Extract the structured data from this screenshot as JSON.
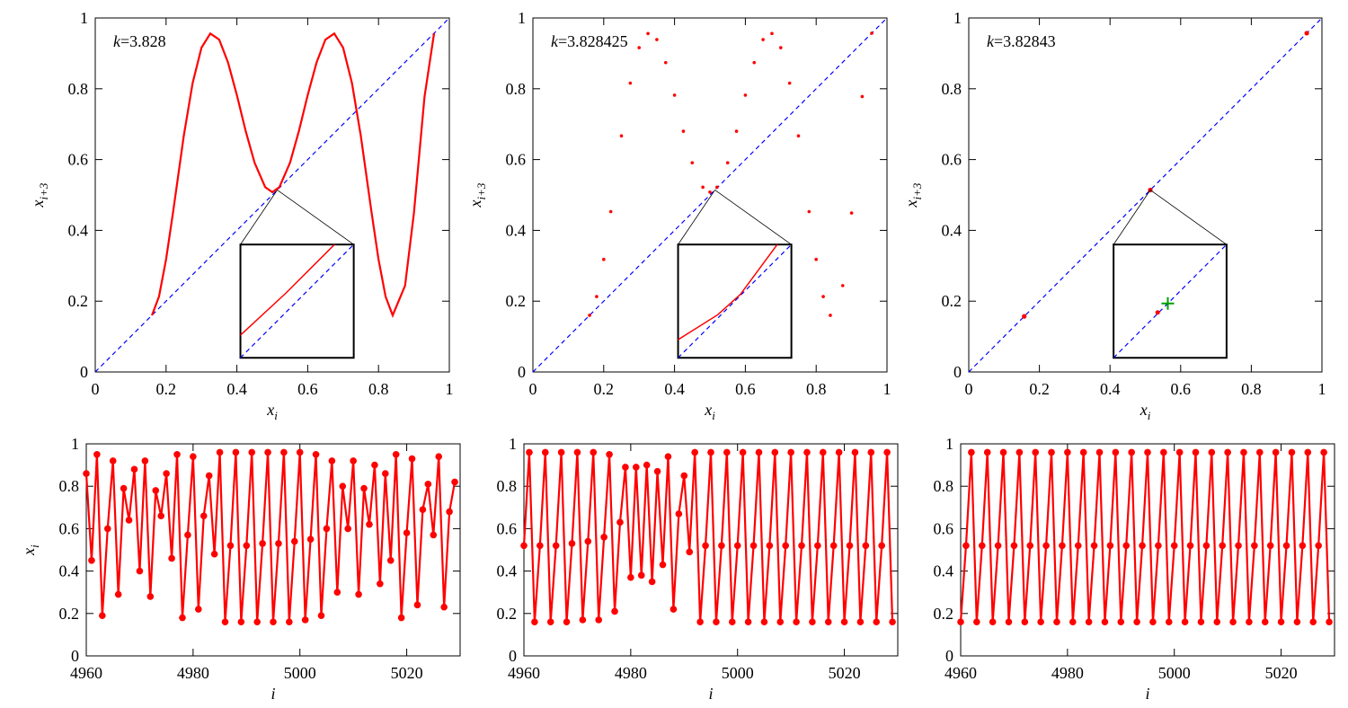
{
  "chart_data": [
    {
      "type": "line",
      "annotation": {
        "symbol": "k",
        "text": "=3.828"
      },
      "xlabel": {
        "base": "x",
        "sub": "i"
      },
      "ylabel": {
        "base": "x",
        "sub": "i+3"
      },
      "xlim": [
        0,
        1
      ],
      "ylim": [
        0,
        1
      ],
      "xticks": [
        0,
        0.2,
        0.4,
        0.6,
        0.8,
        1
      ],
      "yticks": [
        0,
        0.2,
        0.4,
        0.6,
        0.8,
        1
      ],
      "series": [
        {
          "color": "#0000ff",
          "dash": true,
          "x": [
            0,
            1
          ],
          "values": [
            0,
            1
          ]
        },
        {
          "color": "#ff0000",
          "x": [
            0.16,
            0.18,
            0.2,
            0.22,
            0.25,
            0.275,
            0.3,
            0.325,
            0.35,
            0.375,
            0.4,
            0.425,
            0.45,
            0.48,
            0.5,
            0.52,
            0.55,
            0.575,
            0.6,
            0.625,
            0.65,
            0.675,
            0.7,
            0.725,
            0.75,
            0.78,
            0.8,
            0.82,
            0.84,
            0.875,
            0.9,
            0.93,
            0.957
          ],
          "values": [
            0.16,
            0.213,
            0.318,
            0.453,
            0.667,
            0.816,
            0.916,
            0.956,
            0.939,
            0.874,
            0.782,
            0.68,
            0.591,
            0.522,
            0.508,
            0.522,
            0.591,
            0.68,
            0.782,
            0.874,
            0.939,
            0.956,
            0.916,
            0.816,
            0.667,
            0.453,
            0.318,
            0.213,
            0.16,
            0.244,
            0.449,
            0.778,
            0.957
          ]
        }
      ],
      "inset": {
        "type": "line",
        "xlim": [
          0.51,
          0.518
        ],
        "ylim": [
          0.51,
          0.518
        ],
        "series": [
          {
            "color": "#0000ff",
            "dash": true,
            "x": [
              0.51,
              0.518
            ],
            "values": [
              0.51,
              0.518
            ]
          },
          {
            "color": "#ff0000",
            "x": [
              0.51,
              0.5132,
              0.51664
            ],
            "values": [
              0.5116,
              0.51456,
              0.518
            ]
          }
        ]
      }
    },
    {
      "type": "scatter",
      "annotation": {
        "symbol": "k",
        "text": "=3.828425"
      },
      "xlabel": {
        "base": "x",
        "sub": "i"
      },
      "ylabel": {
        "base": "x",
        "sub": "i+3"
      },
      "xlim": [
        0,
        1
      ],
      "ylim": [
        0,
        1
      ],
      "xticks": [
        0,
        0.2,
        0.4,
        0.6,
        0.8,
        1
      ],
      "yticks": [
        0,
        0.2,
        0.4,
        0.6,
        0.8,
        1
      ],
      "series": [
        {
          "color": "#0000ff",
          "dash": true,
          "x": [
            0,
            1
          ],
          "values": [
            0,
            1
          ]
        },
        {
          "color": "#ff0000",
          "x": [
            0.16,
            0.18,
            0.2,
            0.22,
            0.25,
            0.275,
            0.3,
            0.325,
            0.35,
            0.375,
            0.4,
            0.425,
            0.45,
            0.48,
            0.5,
            0.52,
            0.55,
            0.575,
            0.6,
            0.625,
            0.65,
            0.675,
            0.7,
            0.725,
            0.75,
            0.78,
            0.8,
            0.82,
            0.84,
            0.875,
            0.9,
            0.93,
            0.957
          ],
          "values": [
            0.16,
            0.213,
            0.318,
            0.453,
            0.667,
            0.816,
            0.916,
            0.956,
            0.939,
            0.874,
            0.782,
            0.68,
            0.591,
            0.522,
            0.508,
            0.522,
            0.591,
            0.68,
            0.782,
            0.874,
            0.939,
            0.956,
            0.916,
            0.816,
            0.667,
            0.453,
            0.318,
            0.213,
            0.16,
            0.244,
            0.449,
            0.778,
            0.957
          ]
        }
      ],
      "inset": {
        "type": "line",
        "xlim": [
          0.51,
          0.518
        ],
        "ylim": [
          0.51,
          0.518
        ],
        "series": [
          {
            "color": "#0000ff",
            "dash": true,
            "x": [
              0.51,
              0.518
            ],
            "values": [
              0.51,
              0.518
            ]
          },
          {
            "color": "#ff0000",
            "x": [
              0.51,
              0.5128,
              0.5144,
              0.517
            ],
            "values": [
              0.51128,
              0.51304,
              0.51448,
              0.518
            ]
          }
        ]
      }
    },
    {
      "type": "scatter",
      "annotation": {
        "symbol": "k",
        "text": "=3.82843"
      },
      "xlabel": {
        "base": "x",
        "sub": "i"
      },
      "ylabel": {
        "base": "x",
        "sub": "i+3"
      },
      "xlim": [
        0,
        1
      ],
      "ylim": [
        0,
        1
      ],
      "xticks": [
        0,
        0.2,
        0.4,
        0.6,
        0.8,
        1
      ],
      "yticks": [
        0,
        0.2,
        0.4,
        0.6,
        0.8,
        1
      ],
      "series": [
        {
          "color": "#0000ff",
          "dash": true,
          "x": [
            0,
            1
          ],
          "values": [
            0,
            1
          ]
        },
        {
          "color": "#ff0000",
          "x": [
            0.157,
            0.514,
            0.957
          ],
          "values": [
            0.157,
            0.514,
            0.957
          ]
        }
      ],
      "inset": {
        "type": "scatter",
        "xlim": [
          0.51,
          0.518
        ],
        "ylim": [
          0.51,
          0.518
        ],
        "series": [
          {
            "color": "#0000ff",
            "dash": true,
            "x": [
              0.51,
              0.518
            ],
            "values": [
              0.51,
              0.518
            ]
          },
          {
            "color": "#ff0000",
            "x": [
              0.51312
            ],
            "values": [
              0.5132
            ]
          },
          {
            "color": "#00a000",
            "marker": "plus",
            "x": [
              0.51384
            ],
            "values": [
              0.51384
            ]
          }
        ]
      }
    },
    {
      "type": "line",
      "markers": true,
      "xlabel": {
        "base": "i"
      },
      "ylabel": {
        "base": "x",
        "sub": "i"
      },
      "xlim": [
        4960,
        5030
      ],
      "ylim": [
        0,
        1
      ],
      "xticks": [
        4960,
        4980,
        5000,
        5020
      ],
      "yticks": [
        0,
        0.2,
        0.4,
        0.6,
        0.8,
        1
      ],
      "series": [
        {
          "color": "#ff0000",
          "x": [
            4960,
            4961,
            4962,
            4963,
            4964,
            4965,
            4966,
            4967,
            4968,
            4969,
            4970,
            4971,
            4972,
            4973,
            4974,
            4975,
            4976,
            4977,
            4978,
            4979,
            4980,
            4981,
            4982,
            4983,
            4984,
            4985,
            4986,
            4987,
            4988,
            4989,
            4990,
            4991,
            4992,
            4993,
            4994,
            4995,
            4996,
            4997,
            4998,
            4999,
            5000,
            5001,
            5002,
            5003,
            5004,
            5005,
            5006,
            5007,
            5008,
            5009,
            5010,
            5011,
            5012,
            5013,
            5014,
            5015,
            5016,
            5017,
            5018,
            5019,
            5020,
            5021,
            5022,
            5023,
            5024,
            5025,
            5026,
            5027,
            5028,
            5029
          ],
          "values": [
            0.86,
            0.45,
            0.95,
            0.19,
            0.6,
            0.92,
            0.29,
            0.79,
            0.64,
            0.88,
            0.4,
            0.92,
            0.28,
            0.78,
            0.66,
            0.86,
            0.46,
            0.95,
            0.18,
            0.57,
            0.94,
            0.22,
            0.66,
            0.85,
            0.48,
            0.96,
            0.16,
            0.52,
            0.96,
            0.16,
            0.52,
            0.96,
            0.16,
            0.53,
            0.96,
            0.16,
            0.53,
            0.96,
            0.16,
            0.54,
            0.96,
            0.17,
            0.55,
            0.95,
            0.19,
            0.6,
            0.92,
            0.3,
            0.8,
            0.6,
            0.92,
            0.29,
            0.79,
            0.62,
            0.9,
            0.34,
            0.86,
            0.45,
            0.95,
            0.18,
            0.58,
            0.93,
            0.24,
            0.69,
            0.81,
            0.57,
            0.94,
            0.23,
            0.68,
            0.82
          ]
        }
      ]
    },
    {
      "type": "line",
      "markers": true,
      "xlabel": {
        "base": "i"
      },
      "xlim": [
        4960,
        5030
      ],
      "ylim": [
        0,
        1
      ],
      "xticks": [
        4960,
        4980,
        5000,
        5020
      ],
      "yticks": [
        0,
        0.2,
        0.4,
        0.6,
        0.8,
        1
      ],
      "series": [
        {
          "color": "#ff0000",
          "x": [
            4960,
            4961,
            4962,
            4963,
            4964,
            4965,
            4966,
            4967,
            4968,
            4969,
            4970,
            4971,
            4972,
            4973,
            4974,
            4975,
            4976,
            4977,
            4978,
            4979,
            4980,
            4981,
            4982,
            4983,
            4984,
            4985,
            4986,
            4987,
            4988,
            4989,
            4990,
            4991,
            4992,
            4993,
            4994,
            4995,
            4996,
            4997,
            4998,
            4999,
            5000,
            5001,
            5002,
            5003,
            5004,
            5005,
            5006,
            5007,
            5008,
            5009,
            5010,
            5011,
            5012,
            5013,
            5014,
            5015,
            5016,
            5017,
            5018,
            5019,
            5020,
            5021,
            5022,
            5023,
            5024,
            5025,
            5026,
            5027,
            5028,
            5029
          ],
          "values": [
            0.52,
            0.96,
            0.16,
            0.52,
            0.96,
            0.16,
            0.52,
            0.96,
            0.16,
            0.53,
            0.96,
            0.17,
            0.54,
            0.96,
            0.17,
            0.56,
            0.95,
            0.21,
            0.63,
            0.89,
            0.37,
            0.89,
            0.38,
            0.9,
            0.35,
            0.87,
            0.43,
            0.94,
            0.22,
            0.67,
            0.85,
            0.49,
            0.96,
            0.16,
            0.52,
            0.96,
            0.16,
            0.52,
            0.96,
            0.16,
            0.52,
            0.96,
            0.16,
            0.52,
            0.96,
            0.16,
            0.52,
            0.96,
            0.16,
            0.52,
            0.96,
            0.16,
            0.52,
            0.96,
            0.16,
            0.52,
            0.96,
            0.16,
            0.52,
            0.96,
            0.16,
            0.52,
            0.96,
            0.16,
            0.52,
            0.96,
            0.16,
            0.52,
            0.96,
            0.16
          ]
        }
      ]
    },
    {
      "type": "line",
      "markers": true,
      "xlabel": {
        "base": "i"
      },
      "xlim": [
        4960,
        5030
      ],
      "ylim": [
        0,
        1
      ],
      "xticks": [
        4960,
        4980,
        5000,
        5020
      ],
      "yticks": [
        0,
        0.2,
        0.4,
        0.6,
        0.8,
        1
      ],
      "series": [
        {
          "color": "#ff0000",
          "x": [
            4960,
            4961,
            4962,
            4963,
            4964,
            4965,
            4966,
            4967,
            4968,
            4969,
            4970,
            4971,
            4972,
            4973,
            4974,
            4975,
            4976,
            4977,
            4978,
            4979,
            4980,
            4981,
            4982,
            4983,
            4984,
            4985,
            4986,
            4987,
            4988,
            4989,
            4990,
            4991,
            4992,
            4993,
            4994,
            4995,
            4996,
            4997,
            4998,
            4999,
            5000,
            5001,
            5002,
            5003,
            5004,
            5005,
            5006,
            5007,
            5008,
            5009,
            5010,
            5011,
            5012,
            5013,
            5014,
            5015,
            5016,
            5017,
            5018,
            5019,
            5020,
            5021,
            5022,
            5023,
            5024,
            5025,
            5026,
            5027,
            5028,
            5029
          ],
          "values": [
            0.16,
            0.52,
            0.96,
            0.16,
            0.52,
            0.96,
            0.16,
            0.52,
            0.96,
            0.16,
            0.52,
            0.96,
            0.16,
            0.52,
            0.96,
            0.16,
            0.52,
            0.96,
            0.16,
            0.52,
            0.96,
            0.16,
            0.52,
            0.96,
            0.16,
            0.52,
            0.96,
            0.16,
            0.52,
            0.96,
            0.16,
            0.52,
            0.96,
            0.16,
            0.52,
            0.96,
            0.16,
            0.52,
            0.96,
            0.16,
            0.52,
            0.96,
            0.16,
            0.52,
            0.96,
            0.16,
            0.52,
            0.96,
            0.16,
            0.52,
            0.96,
            0.16,
            0.52,
            0.96,
            0.16,
            0.52,
            0.96,
            0.16,
            0.52,
            0.96,
            0.16,
            0.52,
            0.96,
            0.16,
            0.52,
            0.96,
            0.16,
            0.52,
            0.96,
            0.16
          ]
        }
      ]
    }
  ]
}
